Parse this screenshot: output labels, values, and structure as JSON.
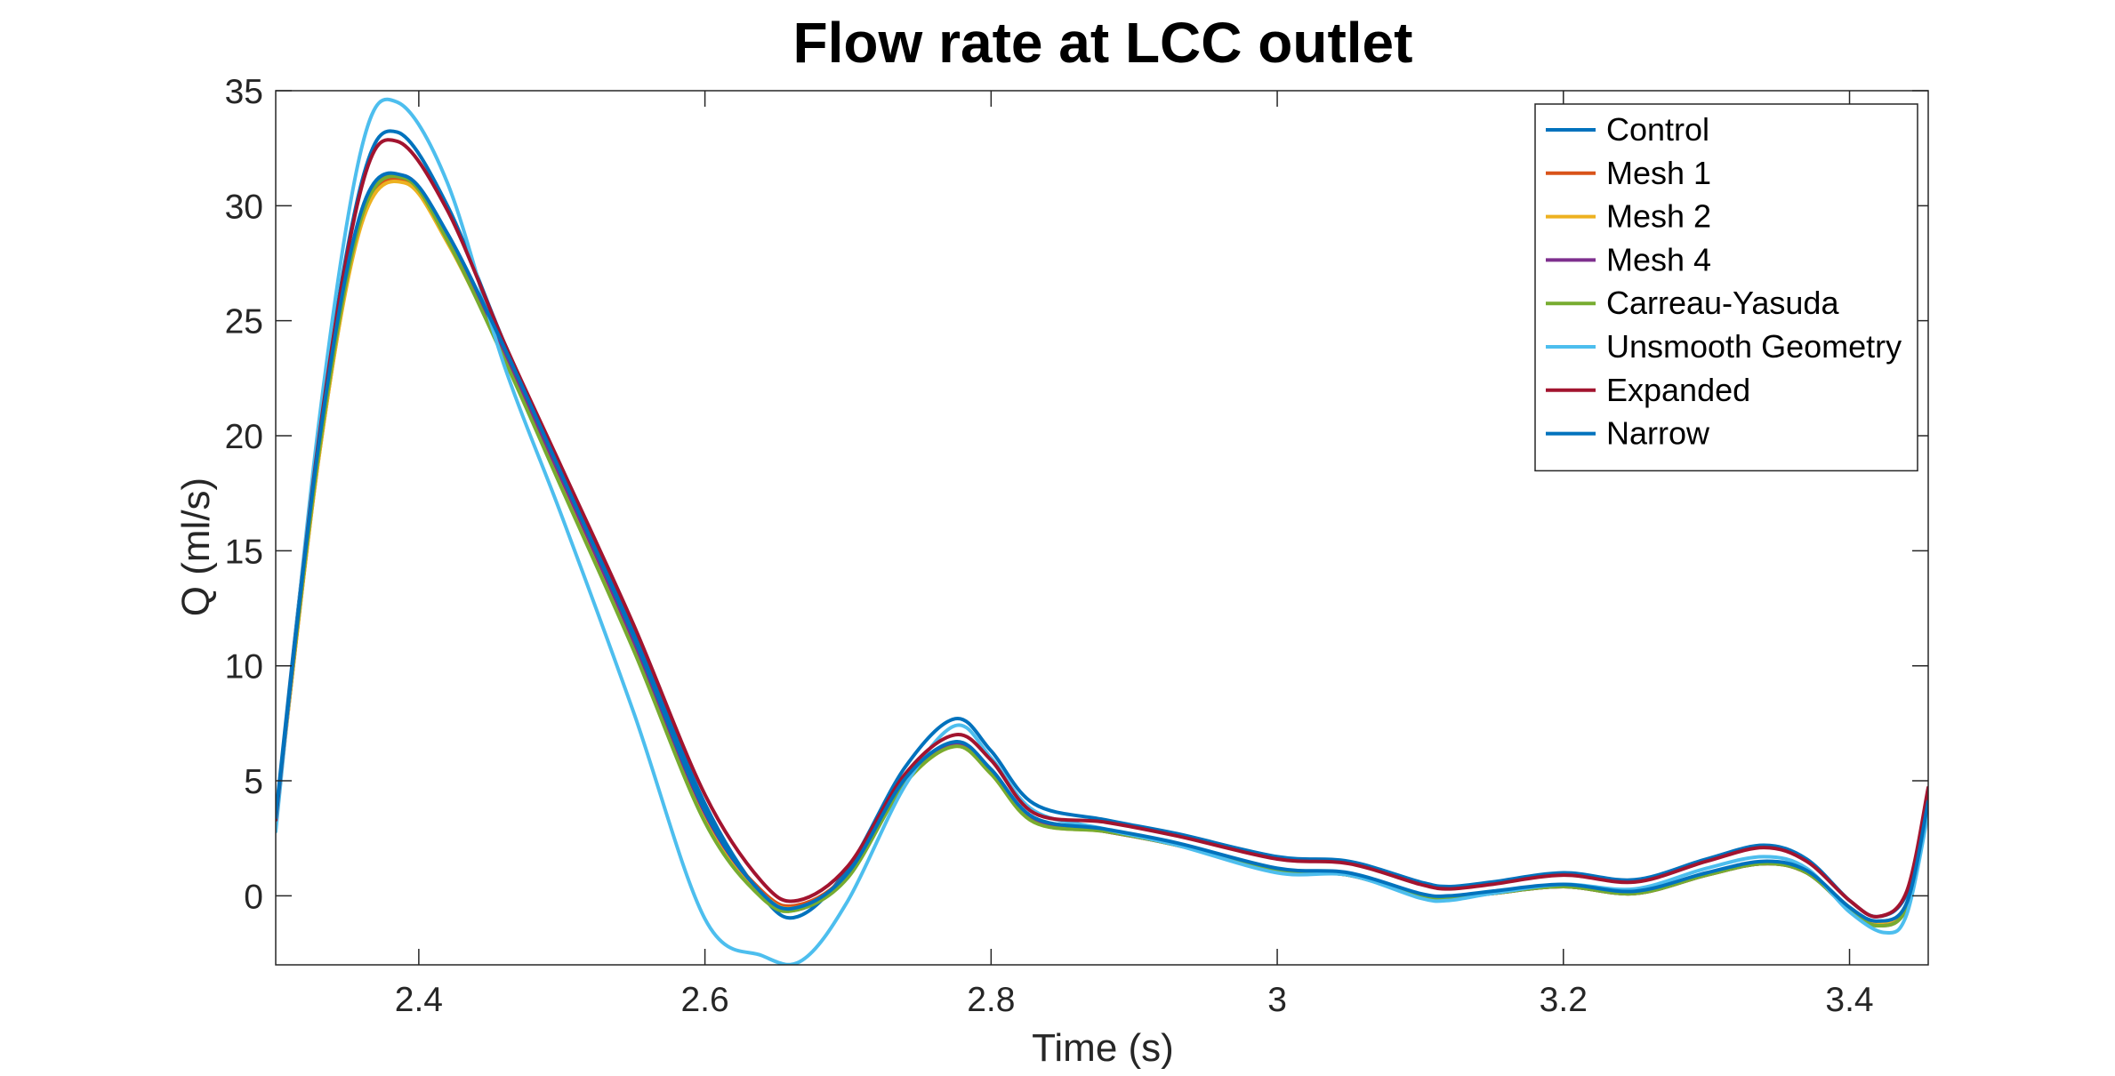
{
  "chart_data": {
    "type": "line",
    "title": "Flow rate at LCC outlet",
    "xlabel": "Time (s)",
    "ylabel": "Q (ml/s)",
    "xlim": [
      2.3,
      3.455
    ],
    "ylim": [
      -3,
      35
    ],
    "xticks": [
      2.4,
      2.6,
      2.8,
      3,
      3.2,
      3.4
    ],
    "xtick_labels": [
      "2.4",
      "2.6",
      "2.8",
      "3",
      "3.2",
      "3.4"
    ],
    "yticks": [
      0,
      5,
      10,
      15,
      20,
      25,
      30,
      35
    ],
    "ytick_labels": [
      "0",
      "5",
      "10",
      "15",
      "20",
      "25",
      "30",
      "35"
    ],
    "grid": false,
    "legend_position": "top-right",
    "series": [
      {
        "name": "Control",
        "color": "#0072BD",
        "x": [
          2.3,
          2.33,
          2.36,
          2.385,
          2.42,
          2.46,
          2.5,
          2.55,
          2.6,
          2.64,
          2.665,
          2.7,
          2.74,
          2.775,
          2.8,
          2.83,
          2.88,
          2.93,
          3.0,
          3.05,
          3.1,
          3.12,
          3.15,
          3.2,
          3.25,
          3.3,
          3.34,
          3.37,
          3.4,
          3.42,
          3.44,
          3.455
        ],
        "y": [
          3.5,
          20.0,
          31.0,
          33.2,
          30.0,
          24.0,
          18.5,
          11.5,
          4.0,
          0.0,
          -0.9,
          1.2,
          5.6,
          7.7,
          6.3,
          4.0,
          3.3,
          2.7,
          1.7,
          1.5,
          0.6,
          0.4,
          0.6,
          1.0,
          0.7,
          1.6,
          2.2,
          1.6,
          -0.2,
          -0.9,
          0.1,
          4.2
        ]
      },
      {
        "name": "Mesh 1",
        "color": "#D95319",
        "x": [
          2.3,
          2.33,
          2.36,
          2.39,
          2.42,
          2.46,
          2.5,
          2.55,
          2.6,
          2.64,
          2.665,
          2.7,
          2.74,
          2.775,
          2.8,
          2.83,
          2.88,
          2.93,
          3.0,
          3.05,
          3.1,
          3.12,
          3.15,
          3.2,
          3.25,
          3.3,
          3.34,
          3.37,
          3.4,
          3.42,
          3.44,
          3.455
        ],
        "y": [
          3.2,
          19.0,
          29.3,
          31.1,
          28.5,
          23.5,
          18.0,
          11.0,
          3.5,
          0.2,
          -0.4,
          1.0,
          5.0,
          6.6,
          5.4,
          3.3,
          2.8,
          2.2,
          1.1,
          0.9,
          0.0,
          -0.1,
          0.1,
          0.4,
          0.1,
          0.9,
          1.4,
          1.0,
          -0.5,
          -1.2,
          -0.4,
          4.0
        ]
      },
      {
        "name": "Mesh 2",
        "color": "#EDB120",
        "x": [
          2.3,
          2.33,
          2.36,
          2.39,
          2.42,
          2.46,
          2.5,
          2.55,
          2.6,
          2.64,
          2.665,
          2.7,
          2.74,
          2.775,
          2.8,
          2.83,
          2.88,
          2.93,
          3.0,
          3.05,
          3.1,
          3.12,
          3.15,
          3.2,
          3.25,
          3.3,
          3.34,
          3.37,
          3.4,
          3.42,
          3.44,
          3.455
        ],
        "y": [
          3.2,
          19.0,
          29.2,
          31.0,
          28.4,
          23.4,
          17.9,
          10.9,
          3.4,
          0.1,
          -0.5,
          0.9,
          4.9,
          6.5,
          5.3,
          3.2,
          2.8,
          2.2,
          1.1,
          0.9,
          0.0,
          -0.1,
          0.1,
          0.4,
          0.1,
          0.9,
          1.4,
          1.0,
          -0.5,
          -1.2,
          -0.4,
          4.0
        ]
      },
      {
        "name": "Mesh 4",
        "color": "#7E2F8E",
        "x": [
          2.3,
          2.33,
          2.36,
          2.39,
          2.42,
          2.46,
          2.5,
          2.55,
          2.6,
          2.64,
          2.665,
          2.7,
          2.74,
          2.775,
          2.8,
          2.83,
          2.88,
          2.93,
          3.0,
          3.05,
          3.1,
          3.12,
          3.15,
          3.2,
          3.25,
          3.3,
          3.34,
          3.37,
          3.4,
          3.42,
          3.44,
          3.455
        ],
        "y": [
          3.3,
          19.3,
          29.6,
          31.3,
          28.7,
          23.6,
          18.1,
          11.1,
          3.6,
          0.1,
          -0.6,
          0.9,
          5.0,
          6.6,
          5.4,
          3.3,
          2.8,
          2.2,
          1.1,
          0.9,
          0.0,
          -0.1,
          0.1,
          0.4,
          0.1,
          0.9,
          1.4,
          1.0,
          -0.6,
          -1.3,
          -0.5,
          4.0
        ]
      },
      {
        "name": "Carreau-Yasuda",
        "color": "#77AC30",
        "x": [
          2.3,
          2.33,
          2.36,
          2.39,
          2.42,
          2.46,
          2.5,
          2.55,
          2.6,
          2.64,
          2.665,
          2.7,
          2.74,
          2.775,
          2.8,
          2.83,
          2.88,
          2.93,
          3.0,
          3.05,
          3.1,
          3.12,
          3.15,
          3.2,
          3.25,
          3.3,
          3.34,
          3.37,
          3.4,
          3.42,
          3.44,
          3.455
        ],
        "y": [
          3.3,
          19.2,
          29.5,
          31.2,
          28.5,
          23.3,
          17.7,
          10.7,
          3.2,
          -0.1,
          -0.6,
          0.8,
          4.9,
          6.5,
          5.3,
          3.2,
          2.8,
          2.2,
          1.1,
          0.9,
          0.0,
          -0.1,
          0.1,
          0.4,
          0.1,
          0.9,
          1.4,
          1.0,
          -0.6,
          -1.3,
          -0.5,
          4.0
        ]
      },
      {
        "name": "Unsmooth Geometry",
        "color": "#4DBEEE",
        "x": [
          2.3,
          2.33,
          2.36,
          2.385,
          2.42,
          2.46,
          2.5,
          2.55,
          2.6,
          2.64,
          2.668,
          2.7,
          2.74,
          2.775,
          2.8,
          2.83,
          2.88,
          2.93,
          3.0,
          3.05,
          3.1,
          3.12,
          3.15,
          3.2,
          3.25,
          3.3,
          3.34,
          3.37,
          3.4,
          3.425,
          3.44,
          3.455
        ],
        "y": [
          2.8,
          20.5,
          32.5,
          34.5,
          31.0,
          23.0,
          16.5,
          8.0,
          -1.0,
          -2.6,
          -2.8,
          -0.2,
          4.8,
          7.4,
          6.0,
          3.7,
          2.9,
          2.2,
          1.0,
          0.9,
          -0.1,
          -0.2,
          0.1,
          0.5,
          0.3,
          1.2,
          1.7,
          1.2,
          -0.7,
          -1.6,
          -0.8,
          3.6
        ]
      },
      {
        "name": "Expanded",
        "color": "#A2142F",
        "x": [
          2.3,
          2.33,
          2.36,
          2.385,
          2.42,
          2.46,
          2.5,
          2.55,
          2.6,
          2.64,
          2.665,
          2.7,
          2.74,
          2.775,
          2.8,
          2.83,
          2.88,
          2.93,
          3.0,
          3.05,
          3.1,
          3.12,
          3.15,
          3.2,
          3.25,
          3.3,
          3.34,
          3.37,
          3.4,
          3.42,
          3.44,
          3.455
        ],
        "y": [
          3.3,
          19.8,
          30.8,
          32.8,
          29.8,
          24.0,
          18.6,
          11.8,
          4.4,
          0.6,
          -0.2,
          1.3,
          5.3,
          7.0,
          5.9,
          3.6,
          3.2,
          2.6,
          1.6,
          1.4,
          0.5,
          0.3,
          0.5,
          0.9,
          0.6,
          1.5,
          2.1,
          1.5,
          -0.2,
          -0.9,
          0.2,
          4.7
        ]
      },
      {
        "name": "Narrow",
        "color": "#0072BD",
        "x": [
          2.3,
          2.33,
          2.36,
          2.39,
          2.42,
          2.46,
          2.5,
          2.55,
          2.6,
          2.64,
          2.665,
          2.7,
          2.74,
          2.775,
          2.8,
          2.83,
          2.88,
          2.93,
          3.0,
          3.05,
          3.1,
          3.12,
          3.15,
          3.2,
          3.25,
          3.3,
          3.34,
          3.37,
          3.4,
          3.42,
          3.44,
          3.455
        ],
        "y": [
          3.4,
          19.6,
          29.8,
          31.3,
          28.8,
          23.8,
          18.3,
          11.3,
          3.7,
          0.1,
          -0.5,
          1.0,
          5.1,
          6.7,
          5.5,
          3.4,
          2.9,
          2.3,
          1.2,
          1.0,
          0.1,
          0.0,
          0.2,
          0.5,
          0.2,
          1.0,
          1.5,
          1.1,
          -0.5,
          -1.1,
          -0.3,
          4.1
        ]
      }
    ]
  }
}
